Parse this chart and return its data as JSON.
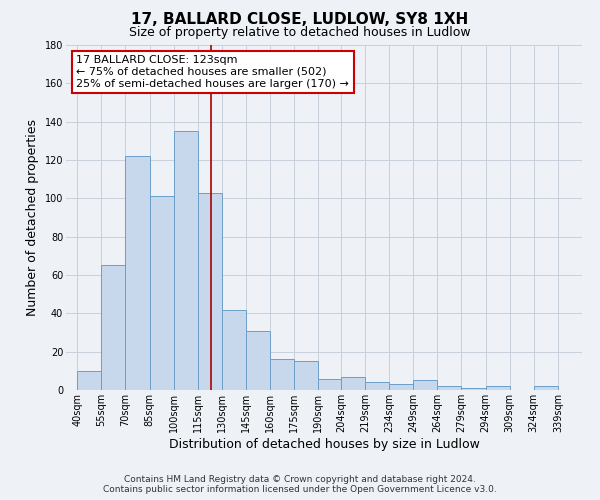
{
  "title": "17, BALLARD CLOSE, LUDLOW, SY8 1XH",
  "subtitle": "Size of property relative to detached houses in Ludlow",
  "xlabel": "Distribution of detached houses by size in Ludlow",
  "ylabel": "Number of detached properties",
  "bar_left_edges": [
    40,
    55,
    70,
    85,
    100,
    115,
    130,
    145,
    160,
    175,
    190,
    204,
    219,
    234,
    249,
    264,
    279,
    294,
    309,
    324
  ],
  "bar_heights": [
    10,
    65,
    122,
    101,
    135,
    103,
    42,
    31,
    16,
    15,
    6,
    7,
    4,
    3,
    5,
    2,
    1,
    2,
    0,
    2
  ],
  "bar_widths": [
    15,
    15,
    15,
    15,
    15,
    15,
    15,
    15,
    15,
    15,
    14,
    15,
    15,
    15,
    15,
    15,
    15,
    15,
    15,
    15
  ],
  "bar_color": "#c8d8ec",
  "bar_edge_color": "#6b9fc8",
  "x_tick_labels": [
    "40sqm",
    "55sqm",
    "70sqm",
    "85sqm",
    "100sqm",
    "115sqm",
    "130sqm",
    "145sqm",
    "160sqm",
    "175sqm",
    "190sqm",
    "204sqm",
    "219sqm",
    "234sqm",
    "249sqm",
    "264sqm",
    "279sqm",
    "294sqm",
    "309sqm",
    "324sqm",
    "339sqm"
  ],
  "x_tick_positions": [
    40,
    55,
    70,
    85,
    100,
    115,
    130,
    145,
    160,
    175,
    190,
    204,
    219,
    234,
    249,
    264,
    279,
    294,
    309,
    324,
    339
  ],
  "ylim": [
    0,
    180
  ],
  "yticks": [
    0,
    20,
    40,
    60,
    80,
    100,
    120,
    140,
    160,
    180
  ],
  "xlim_left": 33,
  "xlim_right": 354,
  "vline_x": 123,
  "vline_color": "#aa0000",
  "annotation_text_line1": "17 BALLARD CLOSE: 123sqm",
  "annotation_text_line2": "← 75% of detached houses are smaller (502)",
  "annotation_text_line3": "25% of semi-detached houses are larger (170) →",
  "annotation_box_color": "#cc0000",
  "annotation_fill_color": "#ffffff",
  "footer_line1": "Contains HM Land Registry data © Crown copyright and database right 2024.",
  "footer_line2": "Contains public sector information licensed under the Open Government Licence v3.0.",
  "background_color": "#eef2f7",
  "plot_bg_color": "#eef2f7",
  "grid_color": "#c8d0dc",
  "title_fontsize": 11,
  "subtitle_fontsize": 9,
  "axis_label_fontsize": 9,
  "tick_fontsize": 7,
  "annotation_fontsize": 8,
  "footer_fontsize": 6.5
}
